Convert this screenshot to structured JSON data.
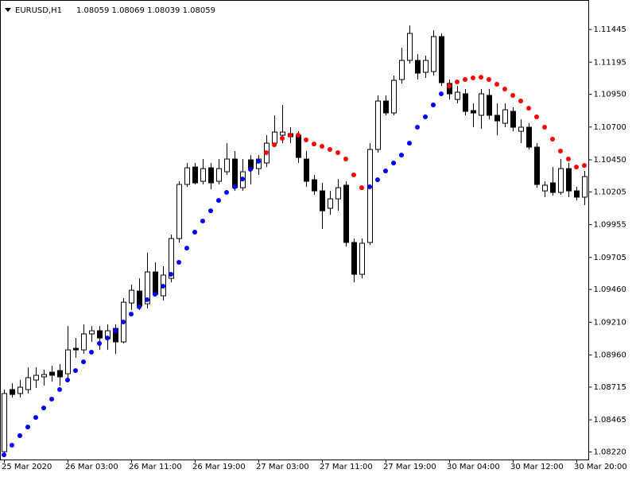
{
  "chart_data": {
    "type": "candlestick",
    "title": "EURUSD,H1",
    "subtitle": "1.08059 1.08069 1.08039 1.08059",
    "categories": [
      "25 Mar 2020",
      null,
      null,
      null,
      null,
      null,
      null,
      null,
      "26 Mar 03:00",
      null,
      null,
      null,
      null,
      null,
      null,
      null,
      "26 Mar 11:00",
      null,
      null,
      null,
      null,
      null,
      null,
      null,
      "26 Mar 19:00",
      null,
      null,
      null,
      null,
      null,
      null,
      null,
      "27 Mar 03:00",
      null,
      null,
      null,
      null,
      null,
      null,
      null,
      "27 Mar 11:00",
      null,
      null,
      null,
      null,
      null,
      null,
      null,
      "27 Mar 19:00",
      null,
      null,
      null,
      null,
      null,
      null,
      null,
      "30 Mar 04:00",
      null,
      null,
      null,
      null,
      null,
      null,
      null,
      "30 Mar 12:00",
      null,
      null,
      null,
      null,
      null,
      null,
      null,
      "30 Mar 20:00",
      null
    ],
    "open": [
      1.08222,
      1.08696,
      1.08666,
      1.08696,
      1.08769,
      1.08793,
      1.08829,
      1.08841,
      1.08817,
      1.09011,
      1.08999,
      1.09121,
      1.09145,
      1.09084,
      1.09163,
      1.0906,
      1.09357,
      1.09448,
      1.09351,
      1.09594,
      1.09412,
      1.09545,
      1.09849,
      1.10262,
      1.10395,
      1.10286,
      1.10389,
      1.10286,
      1.10359,
      1.10456,
      1.10237,
      1.1045,
      1.10383,
      1.10426,
      1.10577,
      1.10638,
      1.1065,
      1.10638,
      1.10456,
      1.10298,
      1.10213,
      1.1008,
      1.10152,
      1.10256,
      1.09819,
      1.09576,
      1.09819,
      1.10529,
      1.10899,
      1.10808,
      1.11063,
      1.11209,
      1.11209,
      1.11118,
      1.11124,
      1.11391,
      1.11033,
      1.10911,
      1.10954,
      1.10826,
      1.1079,
      1.10942,
      1.1079,
      1.10729,
      1.1082,
      1.10668,
      1.10699,
      1.10547,
      1.10213,
      1.10274,
      1.10201,
      1.10383,
      1.10213,
      1.10165
    ],
    "high": [
      1.08696,
      1.08744,
      1.08769,
      1.08866,
      1.08866,
      1.08847,
      1.08878,
      1.0889,
      1.09181,
      1.0909,
      1.09193,
      1.09181,
      1.09181,
      1.09193,
      1.09193,
      1.09394,
      1.09497,
      1.09545,
      1.0974,
      1.09667,
      1.09637,
      1.09879,
      1.10286,
      1.10426,
      1.10426,
      1.10456,
      1.10426,
      1.10456,
      1.10577,
      1.10517,
      1.10456,
      1.10486,
      1.10486,
      1.10638,
      1.1079,
      1.10869,
      1.10699,
      1.10668,
      1.10517,
      1.10335,
      1.10274,
      1.10213,
      1.10304,
      1.10286,
      1.09849,
      1.09849,
      1.10577,
      1.10942,
      1.10942,
      1.11093,
      1.11306,
      1.11476,
      1.11257,
      1.11245,
      1.11439,
      1.11415,
      1.11063,
      1.11014,
      1.1099,
      1.10881,
      1.1099,
      1.1099,
      1.10881,
      1.10881,
      1.10851,
      1.10759,
      1.10729,
      1.10577,
      1.10286,
      1.10395,
      1.10456,
      1.10426,
      1.10244,
      1.10365
    ],
    "low": [
      1.0818,
      1.08635,
      1.08635,
      1.08666,
      1.08708,
      1.08726,
      1.08756,
      1.08726,
      1.08756,
      1.08938,
      1.08969,
      1.0906,
      1.08999,
      1.08999,
      1.08969,
      1.09048,
      1.09303,
      1.09303,
      1.09315,
      1.09412,
      1.09376,
      1.09515,
      1.09819,
      1.10244,
      1.10262,
      1.10262,
      1.10225,
      1.10262,
      1.10335,
      1.10213,
      1.10213,
      1.10262,
      1.10335,
      1.10395,
      1.10547,
      1.10577,
      1.10577,
      1.10426,
      1.10244,
      1.10183,
      1.09922,
      1.10031,
      1.10061,
      1.09788,
      1.09515,
      1.09545,
      1.098,
      1.10505,
      1.1079,
      1.1079,
      1.11033,
      1.11184,
      1.11063,
      1.11075,
      1.11093,
      1.11014,
      1.10911,
      1.10881,
      1.1079,
      1.10699,
      1.10687,
      1.10759,
      1.10638,
      1.10699,
      1.10668,
      1.10577,
      1.10529,
      1.10237,
      1.10165,
      1.10177,
      1.10183,
      1.10165,
      1.1014,
      1.10104
    ],
    "close": [
      1.08666,
      1.08659,
      1.08714,
      1.08787,
      1.08805,
      1.08811,
      1.08805,
      1.08793,
      1.08999,
      1.08999,
      1.09121,
      1.09145,
      1.0909,
      1.09145,
      1.0906,
      1.09363,
      1.09454,
      1.09333,
      1.09594,
      1.09424,
      1.0957,
      1.09849,
      1.10262,
      1.10389,
      1.10274,
      1.10383,
      1.10274,
      1.10383,
      1.10456,
      1.10237,
      1.10359,
      1.10383,
      1.10456,
      1.10577,
      1.10662,
      1.10662,
      1.10626,
      1.10468,
      1.10286,
      1.10213,
      1.10061,
      1.10152,
      1.10237,
      1.09819,
      1.09576,
      1.09813,
      1.10529,
      1.10899,
      1.10808,
      1.11057,
      1.11209,
      1.11415,
      1.11112,
      1.11209,
      1.11391,
      1.11039,
      1.10954,
      1.10966,
      1.1082,
      1.10808,
      1.10954,
      1.1079,
      1.10747,
      1.10832,
      1.10699,
      1.10699,
      1.10547,
      1.10262,
      1.10256,
      1.10201,
      1.10383,
      1.10213,
      1.10165,
      1.10322
    ],
    "up_color": "#ffffff",
    "down_color": "#000000",
    "wick_color": "#000000",
    "series": [
      {
        "type": "scatter",
        "color": "#ff0000",
        "values": [
          null,
          null,
          null,
          null,
          null,
          null,
          null,
          null,
          null,
          null,
          null,
          null,
          null,
          null,
          null,
          null,
          null,
          null,
          null,
          null,
          null,
          null,
          null,
          null,
          null,
          null,
          null,
          null,
          null,
          null,
          null,
          null,
          null,
          1.10505,
          1.10565,
          1.10614,
          1.10638,
          1.10638,
          1.10602,
          1.10571,
          1.10553,
          1.10529,
          1.10505,
          1.10456,
          1.10335,
          1.10237,
          null,
          null,
          null,
          null,
          null,
          null,
          null,
          null,
          null,
          null,
          1.11014,
          1.11045,
          1.11063,
          1.11075,
          1.11081,
          1.11063,
          1.11027,
          1.1099,
          1.10942,
          1.10899,
          1.10844,
          1.10778,
          1.10699,
          1.10608,
          1.10517,
          1.10456,
          1.10395,
          1.10407
        ]
      },
      {
        "type": "scatter",
        "color": "#0000ff",
        "values": [
          1.08198,
          1.08271,
          1.08344,
          1.0841,
          1.08483,
          1.08556,
          1.08623,
          1.08696,
          1.08769,
          1.08841,
          1.08908,
          1.08981,
          1.09048,
          1.0909,
          1.09145,
          1.09212,
          1.09272,
          1.09327,
          1.09382,
          1.09424,
          1.09485,
          1.09576,
          1.09667,
          1.09776,
          1.09898,
          1.09983,
          1.10061,
          1.1014,
          1.10201,
          1.10244,
          1.10304,
          1.10377,
          1.10438,
          null,
          null,
          null,
          null,
          null,
          null,
          null,
          null,
          null,
          null,
          null,
          null,
          null,
          1.10244,
          1.10298,
          1.10365,
          1.10426,
          1.10486,
          1.10577,
          1.10699,
          1.10778,
          1.10869,
          1.10954,
          null,
          null,
          null,
          null,
          null,
          null,
          null,
          null,
          null,
          null,
          null,
          null,
          null,
          null,
          null,
          null,
          null,
          null
        ]
      }
    ],
    "ylim": [
      1.08162,
      1.11658
    ],
    "yticks": [
      1.11445,
      1.11195,
      {
        "value": 1.1095,
        "label": "1.10950"
      },
      {
        "value": 1.107,
        "label": "1.10700"
      },
      {
        "value": 1.1045,
        "label": "1.10450"
      },
      1.10205,
      1.09955,
      1.09705,
      {
        "value": 1.0946,
        "label": "1.09460"
      },
      {
        "value": 1.0921,
        "label": "1.09210"
      },
      {
        "value": 1.0896,
        "label": "1.08960"
      },
      1.08715,
      1.08465,
      {
        "value": 1.0822,
        "label": "1.08220"
      }
    ],
    "y_axis_side": "right",
    "grid": false
  }
}
